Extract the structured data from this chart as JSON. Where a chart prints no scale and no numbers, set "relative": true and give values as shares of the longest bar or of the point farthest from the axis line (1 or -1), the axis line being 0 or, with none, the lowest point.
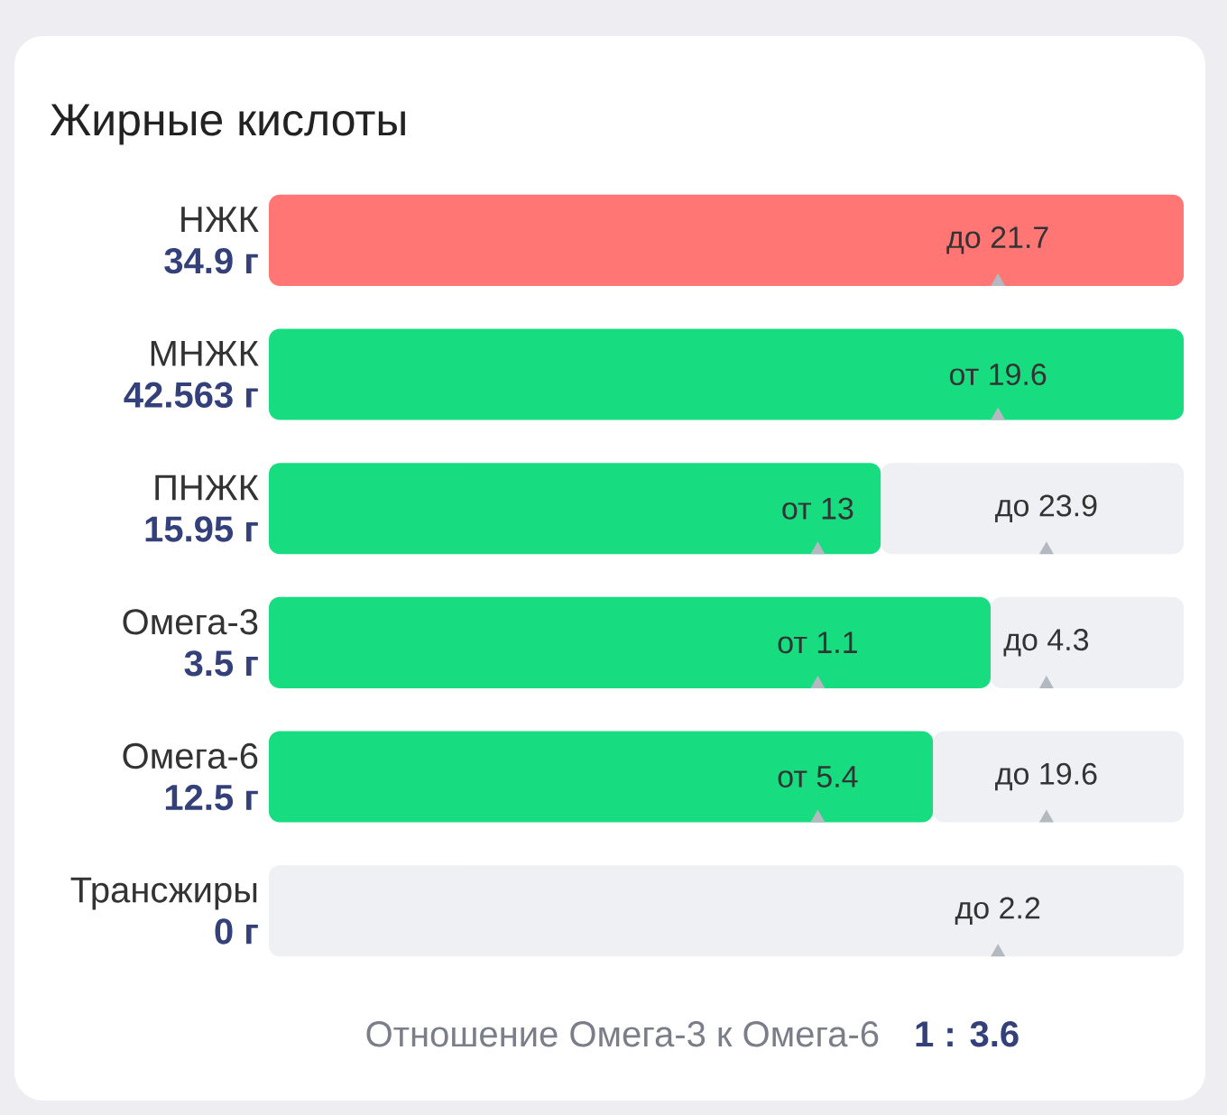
{
  "chart_data": {
    "type": "bar",
    "orientation": "horizontal",
    "stacked": true,
    "relative": true,
    "tick_labels": "y",
    "title": "Жирные кислоты",
    "categories": [
      "НЖК",
      "МНЖК",
      "ПНЖК",
      "Омега-3",
      "Омега-6",
      "Трансжиры"
    ],
    "value_labels": [
      "34.9 г",
      "42.563 г",
      "15.95 г",
      "3.5 г",
      "12.5 г",
      "0 г"
    ],
    "series": [
      {
        "colors": [
          "#ff7675",
          "#17dd80",
          "#17dd80",
          "#17dd80",
          "#17dd80",
          "#17dd80"
        ],
        "values": [
          1,
          1,
          0.669,
          0.789,
          0.726,
          0
        ]
      },
      {
        "color": "#eff0f3",
        "values": [
          0,
          0,
          0.331,
          0.211,
          0.274,
          1
        ]
      }
    ],
    "annotations": [
      "до 21.7",
      "от 19.6",
      "от 13",
      "до 23.9",
      "от 1.1",
      "до 4.3",
      "от 5.4",
      "до 19.6",
      "до 2.2",
      "Отношение Омега-3 к Омега-6",
      "1 : 3.6"
    ]
  }
}
